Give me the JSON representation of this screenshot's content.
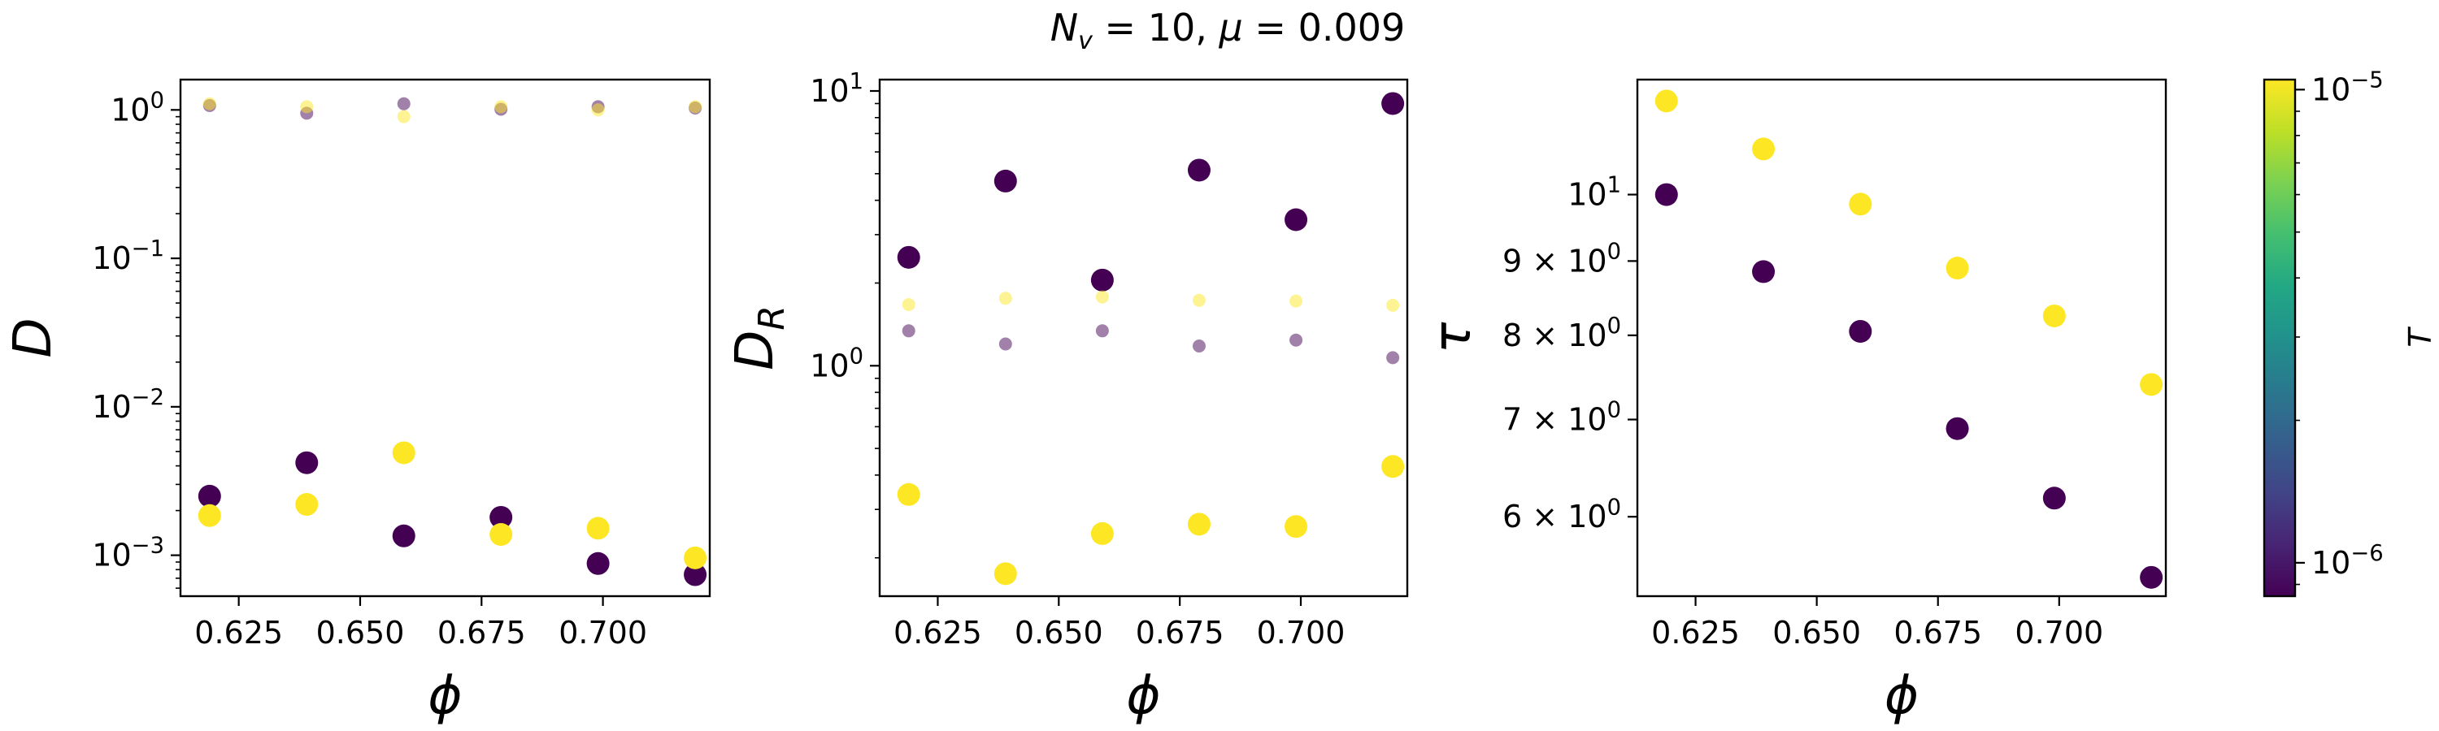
{
  "title": "N_v = 10, μ = 0.009",
  "colors": {
    "low_T": "#440154",
    "high_T": "#fde725"
  },
  "colorbar": {
    "label": "T",
    "scale": "log",
    "range": [
      8.5e-07,
      1.05e-05
    ],
    "ticks": [
      {
        "value": 1e-06,
        "base": "10",
        "exp": "−6"
      },
      {
        "value": 1e-05,
        "base": "10",
        "exp": "−5"
      }
    ],
    "colormap": "viridis"
  },
  "chart_data": [
    {
      "type": "scatter",
      "ylabel": "D",
      "xlabel": "ϕ",
      "yscale": "log",
      "xlim": [
        0.613,
        0.722
      ],
      "ylim": [
        0.00053,
        1.6
      ],
      "xticks": [
        0.625,
        0.65,
        0.675,
        0.7
      ],
      "xtick_labels": [
        "0.625",
        "0.650",
        "0.675",
        "0.700"
      ],
      "yticks": [
        {
          "value": 1,
          "base": "10",
          "exp": "0"
        },
        {
          "value": 0.1,
          "base": "10",
          "exp": "−1"
        },
        {
          "value": 0.01,
          "base": "10",
          "exp": "−2"
        },
        {
          "value": 0.001,
          "base": "10",
          "exp": "−3"
        }
      ],
      "series": [
        {
          "T": "low",
          "size": "large",
          "x": [
            0.619,
            0.639,
            0.659,
            0.679,
            0.699,
            0.719
          ],
          "y": [
            0.0025,
            0.0042,
            0.00135,
            0.0018,
            0.00088,
            0.00074
          ]
        },
        {
          "T": "high",
          "size": "large",
          "x": [
            0.619,
            0.639,
            0.659,
            0.679,
            0.699,
            0.719
          ],
          "y": [
            0.00185,
            0.0022,
            0.0049,
            0.00138,
            0.00152,
            0.00096
          ]
        },
        {
          "T": "low",
          "size": "small",
          "x": [
            0.619,
            0.639,
            0.659,
            0.679,
            0.699,
            0.719
          ],
          "y": [
            1.07,
            0.95,
            1.1,
            1.01,
            1.05,
            1.03
          ]
        },
        {
          "T": "high",
          "size": "small",
          "x": [
            0.619,
            0.639,
            0.659,
            0.679,
            0.699,
            0.719
          ],
          "y": [
            1.1,
            1.05,
            0.9,
            1.05,
            1.0,
            1.05
          ]
        }
      ]
    },
    {
      "type": "scatter",
      "ylabel": "D_R",
      "xlabel": "ϕ",
      "yscale": "log",
      "xlim": [
        0.613,
        0.722
      ],
      "ylim": [
        0.145,
        11.0
      ],
      "xticks": [
        0.625,
        0.65,
        0.675,
        0.7
      ],
      "xtick_labels": [
        "0.625",
        "0.650",
        "0.675",
        "0.700"
      ],
      "yticks": [
        {
          "value": 10,
          "base": "10",
          "exp": "1"
        },
        {
          "value": 1,
          "base": "10",
          "exp": "0"
        }
      ],
      "series": [
        {
          "T": "low",
          "size": "large",
          "x": [
            0.619,
            0.639,
            0.659,
            0.679,
            0.699,
            0.719
          ],
          "y": [
            2.48,
            4.7,
            2.05,
            5.15,
            3.4,
            9.0
          ]
        },
        {
          "T": "high",
          "size": "large",
          "x": [
            0.619,
            0.639,
            0.659,
            0.679,
            0.699,
            0.719
          ],
          "y": [
            0.34,
            0.175,
            0.245,
            0.265,
            0.26,
            0.43
          ]
        },
        {
          "T": "low",
          "size": "small",
          "x": [
            0.619,
            0.639,
            0.659,
            0.679,
            0.699,
            0.719
          ],
          "y": [
            1.34,
            1.2,
            1.34,
            1.18,
            1.24,
            1.07
          ]
        },
        {
          "T": "high",
          "size": "small",
          "x": [
            0.619,
            0.639,
            0.659,
            0.679,
            0.699,
            0.719
          ],
          "y": [
            1.67,
            1.76,
            1.78,
            1.73,
            1.72,
            1.66
          ]
        }
      ]
    },
    {
      "type": "scatter",
      "ylabel": "τ",
      "xlabel": "ϕ",
      "yscale": "log",
      "xlim": [
        0.613,
        0.722
      ],
      "ylim": [
        5.29,
        12.0
      ],
      "xticks": [
        0.625,
        0.65,
        0.675,
        0.7
      ],
      "xtick_labels": [
        "0.625",
        "0.650",
        "0.675",
        "0.700"
      ],
      "yticks": [
        {
          "value": 10,
          "base": "10",
          "exp": "1"
        },
        {
          "value": 9,
          "prefix": "9 × ",
          "base": "10",
          "exp": "0"
        },
        {
          "value": 8,
          "prefix": "8 × ",
          "base": "10",
          "exp": "0"
        },
        {
          "value": 7,
          "prefix": "7 × ",
          "base": "10",
          "exp": "0"
        },
        {
          "value": 6,
          "prefix": "6 × ",
          "base": "10",
          "exp": "0"
        }
      ],
      "series": [
        {
          "T": "low",
          "size": "large",
          "x": [
            0.619,
            0.639,
            0.659,
            0.679,
            0.699,
            0.719
          ],
          "y": [
            10.0,
            8.85,
            8.05,
            6.9,
            6.18,
            5.45
          ]
        },
        {
          "T": "high",
          "size": "large",
          "x": [
            0.619,
            0.639,
            0.659,
            0.679,
            0.699,
            0.719
          ],
          "y": [
            11.6,
            10.75,
            9.85,
            8.9,
            8.25,
            7.4
          ]
        }
      ]
    }
  ]
}
